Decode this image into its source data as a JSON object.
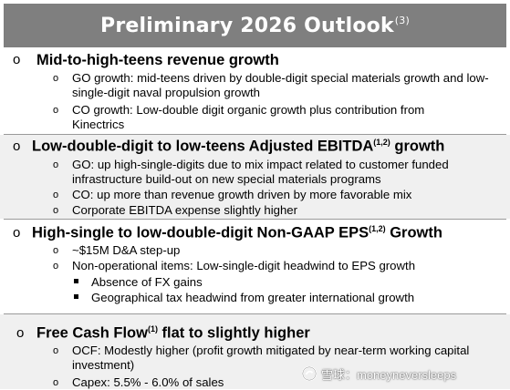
{
  "title": {
    "text": "Preliminary 2026 Outlook",
    "sup": "(3)"
  },
  "sections": [
    {
      "heading": "Mid-to-high-teens revenue growth",
      "heading_sup": "",
      "heading_suffix": "",
      "items": [
        "GO growth: mid-teens driven by double-digit special materials growth and low-single-digit naval propulsion growth",
        "CO growth: Low-double digit organic growth plus contribution from Kinectrics"
      ]
    },
    {
      "heading": "Low-double-digit to low-teens Adjusted EBITDA",
      "heading_sup": "(1,2)",
      "heading_suffix": " growth",
      "items": [
        "GO: up high-single-digits due to mix impact related to customer funded infrastructure build-out on new special materials programs",
        "CO: up more than revenue growth driven by more favorable mix",
        "Corporate EBITDA expense slightly higher"
      ]
    },
    {
      "heading": "High-single to low-double-digit Non-GAAP EPS",
      "heading_sup": "(1,2)",
      "heading_suffix": " Growth",
      "items": [
        "~$15M D&A step-up",
        "Non-operational items: Low-single-digit headwind to EPS growth"
      ],
      "subitems": [
        "Absence of FX gains",
        "Geographical tax headwind from greater international growth"
      ]
    },
    {
      "heading": "Free Cash Flow",
      "heading_sup": "(1)",
      "heading_suffix": " flat to slightly higher",
      "items": [
        "OCF: Modestly higher (profit growth mitigated by near-term working capital investment)",
        "Capex: 5.5% - 6.0% of sales"
      ]
    }
  ],
  "bullet_glyph": "o",
  "watermark": {
    "text": "雪球：moneyneversleeps",
    "icon": "snowball-logo-icon"
  },
  "colors": {
    "title_bg": "#7f7f7f",
    "alt_section_bg": "#f0f0f0",
    "divider": "#9a9a9a"
  }
}
